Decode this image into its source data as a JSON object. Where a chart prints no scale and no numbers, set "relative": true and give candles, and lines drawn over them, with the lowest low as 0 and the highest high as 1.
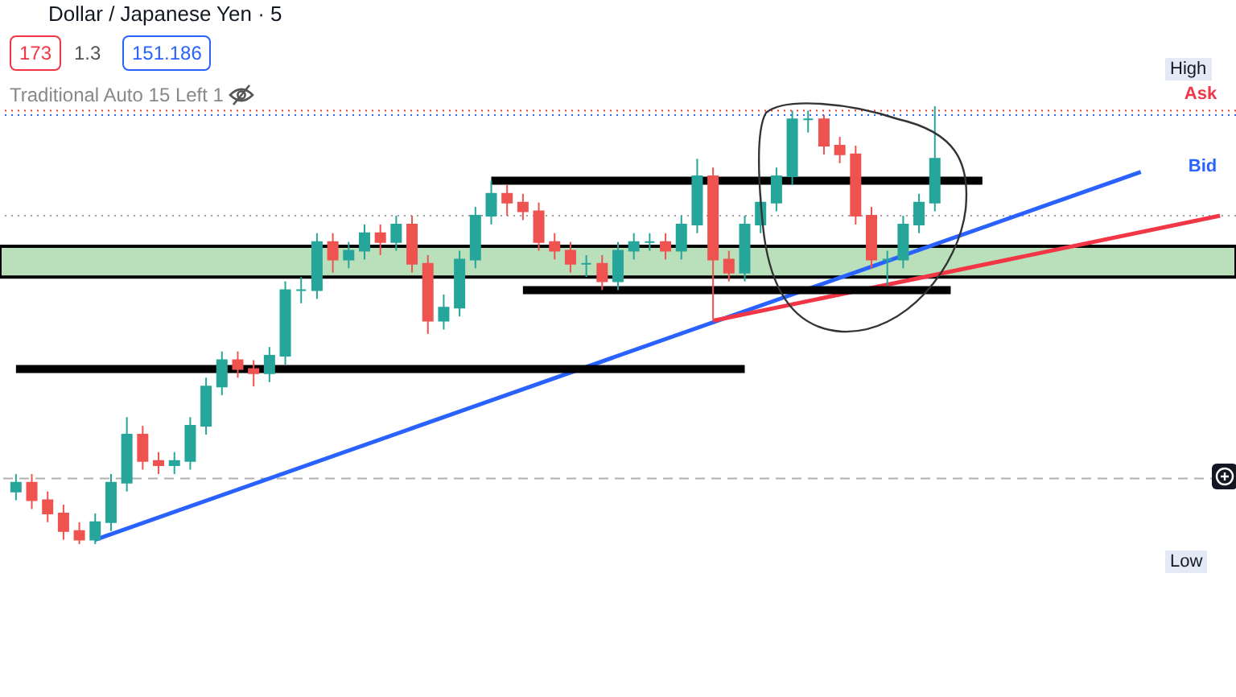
{
  "chart_data": {
    "type": "candlestick",
    "title": "Dollar / Japanese Yen · 5",
    "relative": true,
    "annotations": [
      "173",
      "1.3",
      "151.186",
      "Traditional Auto 15 Left 1",
      "High",
      "Low"
    ],
    "categories": [
      null,
      null,
      null,
      null,
      null,
      null,
      null,
      null,
      null,
      null,
      null,
      null,
      null,
      null,
      null,
      null,
      null,
      null,
      null,
      null,
      null,
      null,
      null,
      null,
      null,
      null,
      null,
      null,
      null,
      null,
      null,
      null,
      null,
      null,
      null,
      null,
      null,
      null,
      null,
      null,
      null,
      null,
      null,
      null,
      null,
      null,
      null,
      null,
      null,
      null,
      null,
      null,
      null,
      null,
      null,
      null,
      null,
      null,
      null,
      null,
      null,
      null,
      null,
      null,
      null,
      null,
      null,
      null,
      null,
      null,
      null,
      null,
      null,
      null,
      null,
      null,
      null
    ],
    "ohlc": [
      [
        0.12,
        0.16,
        0.1,
        0.14
      ],
      [
        0.14,
        0.16,
        0.08,
        0.1
      ],
      [
        0.1,
        0.12,
        0.05,
        0.07
      ],
      [
        0.07,
        0.09,
        0.01,
        0.03
      ],
      [
        0.03,
        0.05,
        0.0,
        0.01
      ],
      [
        0.01,
        0.07,
        0.0,
        0.05
      ],
      [
        0.05,
        0.16,
        0.03,
        0.14
      ],
      [
        0.14,
        0.29,
        0.12,
        0.25
      ],
      [
        0.25,
        0.27,
        0.17,
        0.19
      ],
      [
        0.19,
        0.21,
        0.16,
        0.18
      ],
      [
        0.18,
        0.21,
        0.16,
        0.19
      ],
      [
        0.19,
        0.29,
        0.17,
        0.27
      ],
      [
        0.27,
        0.38,
        0.25,
        0.36
      ],
      [
        0.36,
        0.44,
        0.34,
        0.42
      ],
      [
        0.42,
        0.44,
        0.38,
        0.4
      ],
      [
        0.4,
        0.42,
        0.36,
        0.39
      ],
      [
        0.39,
        0.45,
        0.37,
        0.43
      ],
      [
        0.43,
        0.6,
        0.41,
        0.58
      ],
      [
        0.58,
        0.61,
        0.55,
        0.58
      ],
      [
        0.58,
        0.71,
        0.56,
        0.69
      ],
      [
        0.69,
        0.71,
        0.62,
        0.65
      ],
      [
        0.65,
        0.69,
        0.63,
        0.67
      ],
      [
        0.67,
        0.73,
        0.65,
        0.71
      ],
      [
        0.71,
        0.73,
        0.66,
        0.69
      ],
      [
        0.69,
        0.75,
        0.67,
        0.73
      ],
      [
        0.73,
        0.75,
        0.62,
        0.64
      ],
      [
        0.64,
        0.66,
        0.48,
        0.51
      ],
      [
        0.51,
        0.57,
        0.49,
        0.54
      ],
      [
        0.54,
        0.67,
        0.52,
        0.65
      ],
      [
        0.65,
        0.77,
        0.63,
        0.75
      ],
      [
        0.75,
        0.83,
        0.73,
        0.8
      ],
      [
        0.8,
        0.82,
        0.75,
        0.78
      ],
      [
        0.78,
        0.8,
        0.74,
        0.76
      ],
      [
        0.76,
        0.78,
        0.67,
        0.69
      ],
      [
        0.69,
        0.71,
        0.65,
        0.67
      ],
      [
        0.67,
        0.69,
        0.62,
        0.64
      ],
      [
        0.64,
        0.66,
        0.61,
        0.64
      ],
      [
        0.64,
        0.66,
        0.58,
        0.6
      ],
      [
        0.6,
        0.69,
        0.58,
        0.67
      ],
      [
        0.67,
        0.71,
        0.65,
        0.69
      ],
      [
        0.69,
        0.71,
        0.67,
        0.69
      ],
      [
        0.69,
        0.71,
        0.65,
        0.67
      ],
      [
        0.67,
        0.75,
        0.65,
        0.73
      ],
      [
        0.73,
        0.88,
        0.71,
        0.84
      ],
      [
        0.84,
        0.86,
        0.51,
        0.65
      ],
      [
        0.65,
        0.67,
        0.6,
        0.62
      ],
      [
        0.62,
        0.75,
        0.6,
        0.73
      ],
      [
        0.73,
        0.8,
        0.71,
        0.78
      ],
      [
        0.78,
        0.86,
        0.76,
        0.84
      ],
      [
        0.84,
        0.99,
        0.82,
        0.97
      ],
      [
        0.97,
        0.99,
        0.94,
        0.97
      ],
      [
        0.97,
        0.98,
        0.89,
        0.91
      ],
      [
        0.91,
        0.93,
        0.87,
        0.89
      ],
      [
        0.89,
        0.91,
        0.73,
        0.75
      ],
      [
        0.75,
        0.77,
        0.63,
        0.65
      ],
      [
        0.65,
        0.67,
        0.59,
        0.65
      ],
      [
        0.65,
        0.75,
        0.63,
        0.73
      ],
      [
        0.73,
        0.8,
        0.71,
        0.78
      ],
      [
        0.78,
        1.0,
        0.76,
        0.88
      ],
      null,
      null,
      null,
      null,
      null,
      null,
      null,
      null,
      null,
      null,
      null,
      null,
      null,
      null,
      null,
      null,
      null,
      null
    ],
    "colors": [
      "#26a69a",
      "#ef5350",
      "#ef5350",
      "#ef5350",
      "#ef5350",
      "#26a69a",
      "#26a69a",
      "#26a69a",
      "#ef5350",
      "#ef5350",
      "#26a69a",
      "#26a69a",
      "#26a69a",
      "#26a69a",
      "#ef5350",
      "#ef5350",
      "#26a69a",
      "#26a69a",
      "#26a69a",
      "#26a69a",
      "#ef5350",
      "#26a69a",
      "#26a69a",
      "#ef5350",
      "#26a69a",
      "#ef5350",
      "#ef5350",
      "#26a69a",
      "#26a69a",
      "#26a69a",
      "#26a69a",
      "#ef5350",
      "#ef5350",
      "#ef5350",
      "#ef5350",
      "#ef5350",
      "#26a69a",
      "#ef5350",
      "#26a69a",
      "#26a69a",
      "#26a69a",
      "#ef5350",
      "#26a69a",
      "#26a69a",
      "#ef5350",
      "#ef5350",
      "#26a69a",
      "#26a69a",
      "#26a69a",
      "#26a69a",
      "#26a69a",
      "#ef5350",
      "#ef5350",
      "#ef5350",
      "#ef5350",
      "#26a69a",
      "#26a69a",
      "#26a69a",
      "#26a69a",
      null,
      null,
      null,
      null,
      null,
      null,
      null,
      null,
      null,
      null,
      null,
      null,
      null,
      null,
      null,
      null,
      null,
      null
    ],
    "series": [
      {
        "type": "line",
        "color": "#2962ff",
        "values": [
          null,
          null,
          null,
          null,
          null,
          0.01,
          null,
          null,
          null,
          null,
          null,
          null,
          null,
          null,
          null,
          null,
          null,
          null,
          null,
          null,
          null,
          null,
          null,
          null,
          null,
          null,
          null,
          null,
          null,
          null,
          null,
          null,
          null,
          null,
          null,
          null,
          null,
          null,
          null,
          null,
          null,
          null,
          null,
          null,
          null,
          null,
          null,
          null,
          null,
          null,
          null,
          null,
          null,
          null,
          null,
          null,
          null,
          null,
          null,
          null,
          null,
          null,
          null,
          null,
          null,
          null,
          null,
          null,
          null,
          null,
          null,
          0.85,
          null,
          null,
          null,
          null,
          null
        ]
      },
      {
        "type": "line",
        "color": "#f23645",
        "values": [
          null,
          null,
          null,
          null,
          null,
          null,
          null,
          null,
          null,
          null,
          null,
          null,
          null,
          null,
          null,
          null,
          null,
          null,
          null,
          null,
          null,
          null,
          null,
          null,
          null,
          null,
          null,
          null,
          null,
          null,
          null,
          null,
          null,
          null,
          null,
          null,
          null,
          null,
          null,
          null,
          null,
          null,
          null,
          null,
          0.51,
          null,
          null,
          null,
          null,
          null,
          null,
          null,
          null,
          null,
          null,
          null,
          null,
          null,
          null,
          null,
          null,
          null,
          null,
          null,
          null,
          null,
          null,
          null,
          null,
          null,
          null,
          null,
          null,
          null,
          null,
          null,
          0.75
        ]
      },
      {
        "type": "line",
        "color": "#000000",
        "values": [
          null,
          null,
          null,
          null,
          null,
          null,
          null,
          null,
          null,
          null,
          null,
          null,
          null,
          null,
          null,
          null,
          null,
          null,
          null,
          null,
          null,
          null,
          null,
          null,
          null,
          null,
          null,
          null,
          null,
          null,
          0.83,
          null,
          null,
          null,
          null,
          null,
          null,
          null,
          null,
          null,
          null,
          null,
          null,
          null,
          null,
          null,
          null,
          null,
          null,
          null,
          null,
          null,
          null,
          null,
          null,
          null,
          null,
          null,
          null,
          null,
          null,
          0.83,
          null,
          null,
          null,
          null,
          null,
          null,
          null,
          null,
          null,
          null,
          null,
          null,
          null,
          null,
          null
        ]
      },
      {
        "type": "line",
        "color": "#000000",
        "values": [
          null,
          null,
          null,
          null,
          null,
          null,
          null,
          null,
          null,
          null,
          null,
          null,
          null,
          null,
          null,
          null,
          null,
          null,
          null,
          null,
          null,
          null,
          null,
          null,
          null,
          null,
          null,
          null,
          null,
          null,
          null,
          null,
          0.58,
          null,
          null,
          null,
          null,
          null,
          null,
          null,
          null,
          null,
          null,
          null,
          null,
          null,
          null,
          null,
          null,
          null,
          null,
          null,
          null,
          null,
          null,
          null,
          null,
          null,
          null,
          0.58,
          null,
          null,
          null,
          null,
          null,
          null,
          null,
          null,
          null,
          null,
          null,
          null,
          null,
          null,
          null,
          null,
          null
        ]
      },
      {
        "type": "line",
        "color": "#000000",
        "values": [
          0.4,
          null,
          null,
          null,
          null,
          null,
          null,
          null,
          null,
          null,
          null,
          null,
          null,
          null,
          null,
          null,
          null,
          null,
          null,
          null,
          null,
          null,
          null,
          null,
          null,
          null,
          null,
          null,
          null,
          null,
          null,
          null,
          null,
          null,
          null,
          null,
          null,
          null,
          null,
          null,
          null,
          null,
          null,
          null,
          null,
          null,
          0.4,
          null,
          null,
          null,
          null,
          null,
          null,
          null,
          null,
          null,
          null,
          null,
          null,
          null,
          null,
          null,
          null,
          null,
          null,
          null,
          null,
          null,
          null,
          null,
          null,
          null,
          null,
          null,
          null,
          null,
          null
        ]
      }
    ],
    "bands": [
      {
        "axis": "y",
        "from": 0.61,
        "to": 0.68,
        "color": "#b9e0bb"
      }
    ],
    "ref_lines": [
      {
        "axis": "y",
        "value": 0.99,
        "label": "Ask",
        "color": "#f23645",
        "line_style": "dotted"
      },
      {
        "axis": "y",
        "value": 0.98,
        "label": "Bid",
        "color": "#2962ff",
        "line_style": "dotted"
      },
      {
        "axis": "y",
        "value": 0.75,
        "color": "#9e9e9e",
        "line_style": "dotted"
      },
      {
        "axis": "y",
        "value": 0.15,
        "color": "#b0b0b0",
        "line_style": "dashed"
      }
    ]
  }
}
